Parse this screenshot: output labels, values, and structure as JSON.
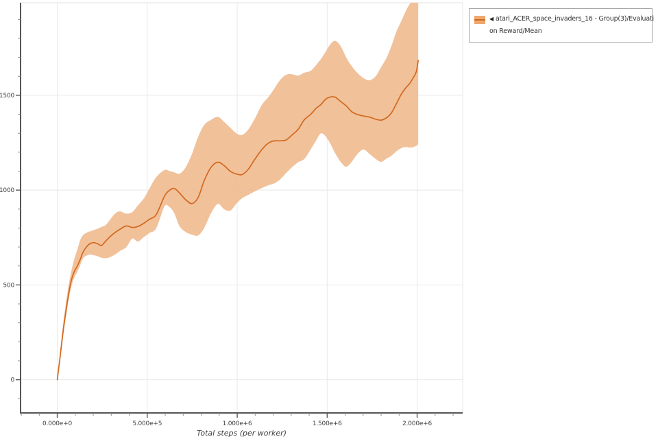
{
  "colors": {
    "line": "#d2691e",
    "band": "#f0bc92",
    "swatch_band": "#efa96e",
    "grid": "#e8e8e8",
    "spine": "#555555",
    "minor_tick": "#8a8a8a",
    "tick_label": "#3d3d3d",
    "axis_title": "#3d3d3d",
    "legend_border": "#a6a6a6",
    "legend_text": "#333333"
  },
  "chart_data": {
    "type": "line",
    "title": "",
    "xlabel": "Total steps (per worker)",
    "ylabel": "",
    "grid": true,
    "legend_position": "top-right",
    "xlim": [
      -204000,
      2253000
    ],
    "ylim": [
      -175,
      1988
    ],
    "x_ticks": [
      {
        "value": 0,
        "label": "0.000e+0"
      },
      {
        "value": 500000,
        "label": "5.000e+5"
      },
      {
        "value": 1000000,
        "label": "1.000e+6"
      },
      {
        "value": 1500000,
        "label": "1.500e+6"
      },
      {
        "value": 2000000,
        "label": "2.000e+6"
      }
    ],
    "y_ticks": [
      {
        "value": 0,
        "label": "0"
      },
      {
        "value": 500,
        "label": "500"
      },
      {
        "value": 1000,
        "label": "1000"
      },
      {
        "value": 1500,
        "label": "1500"
      }
    ],
    "x_minor_interval": 100000,
    "y_minor_interval": 100,
    "legend_item": {
      "marker": "◀",
      "label": "atari_ACER_space_invaders_16 - Group(3)/Evaluation Reward/Mean",
      "label_lines": [
        "atari_ACER_space_invaders_16 - Group(3)/Evaluati",
        "on Reward/Mean"
      ]
    },
    "series": [
      {
        "name": "atari_ACER_space_invaders_16 - Group(3)/Evaluation Reward/Mean",
        "points_format": [
          "step",
          "mean",
          "low",
          "high"
        ],
        "points": [
          [
            0,
            0,
            0,
            4
          ],
          [
            17000,
            130,
            112,
            158
          ],
          [
            32000,
            252,
            226,
            290
          ],
          [
            48000,
            362,
            330,
            405
          ],
          [
            63000,
            452,
            420,
            498
          ],
          [
            78000,
            523,
            490,
            572
          ],
          [
            93000,
            568,
            535,
            632
          ],
          [
            112000,
            601,
            570,
            688
          ],
          [
            128000,
            636,
            606,
            738
          ],
          [
            143000,
            672,
            640,
            762
          ],
          [
            162000,
            700,
            654,
            775
          ],
          [
            181000,
            717,
            660,
            782
          ],
          [
            204000,
            723,
            657,
            790
          ],
          [
            227000,
            716,
            650,
            797
          ],
          [
            246000,
            708,
            643,
            806
          ],
          [
            269000,
            731,
            641,
            816
          ],
          [
            295000,
            756,
            647,
            846
          ],
          [
            322000,
            777,
            661,
            877
          ],
          [
            349000,
            794,
            679,
            888
          ],
          [
            383000,
            811,
            699,
            876
          ],
          [
            417000,
            803,
            744,
            884
          ],
          [
            448000,
            808,
            729,
            919
          ],
          [
            482000,
            826,
            753,
            957
          ],
          [
            512000,
            846,
            774,
            1008
          ],
          [
            550000,
            871,
            799,
            1068
          ],
          [
            596000,
            968,
            914,
            1106
          ],
          [
            623000,
            998,
            911,
            1101
          ],
          [
            650000,
            1009,
            878,
            1094
          ],
          [
            680000,
            984,
            809,
            1087
          ],
          [
            714000,
            949,
            779,
            1121
          ],
          [
            749000,
            929,
            765,
            1192
          ],
          [
            783000,
            961,
            761,
            1281
          ],
          [
            817000,
            1051,
            801,
            1344
          ],
          [
            855000,
            1121,
            879,
            1371
          ],
          [
            893000,
            1147,
            927,
            1386
          ],
          [
            928000,
            1129,
            899,
            1359
          ],
          [
            962000,
            1099,
            892,
            1329
          ],
          [
            996000,
            1085,
            929,
            1299
          ],
          [
            1027000,
            1082,
            957,
            1291
          ],
          [
            1061000,
            1109,
            974,
            1319
          ],
          [
            1099000,
            1164,
            994,
            1379
          ],
          [
            1137000,
            1214,
            1011,
            1449
          ],
          [
            1172000,
            1247,
            1025,
            1489
          ],
          [
            1202000,
            1259,
            1034,
            1529
          ],
          [
            1236000,
            1260,
            1054,
            1578
          ],
          [
            1271000,
            1264,
            1089,
            1608
          ],
          [
            1305000,
            1291,
            1121,
            1611
          ],
          [
            1339000,
            1321,
            1147,
            1604
          ],
          [
            1373000,
            1371,
            1164,
            1619
          ],
          [
            1408000,
            1399,
            1214,
            1629
          ],
          [
            1438000,
            1431,
            1261,
            1659
          ],
          [
            1465000,
            1451,
            1299,
            1691
          ],
          [
            1491000,
            1479,
            1284,
            1729
          ],
          [
            1518000,
            1491,
            1244,
            1769
          ],
          [
            1545000,
            1490,
            1194,
            1787
          ],
          [
            1575000,
            1467,
            1149,
            1759
          ],
          [
            1606000,
            1444,
            1123,
            1699
          ],
          [
            1636000,
            1414,
            1149,
            1654
          ],
          [
            1667000,
            1399,
            1189,
            1619
          ],
          [
            1701000,
            1391,
            1214,
            1591
          ],
          [
            1735000,
            1385,
            1191,
            1579
          ],
          [
            1770000,
            1374,
            1164,
            1601
          ],
          [
            1800000,
            1369,
            1149,
            1649
          ],
          [
            1831000,
            1382,
            1167,
            1699
          ],
          [
            1857000,
            1407,
            1181,
            1759
          ],
          [
            1884000,
            1454,
            1204,
            1834
          ],
          [
            1911000,
            1504,
            1221,
            1889
          ],
          [
            1937000,
            1539,
            1227,
            1944
          ],
          [
            1960000,
            1564,
            1224,
            1984
          ],
          [
            1979000,
            1594,
            1227,
            2008
          ],
          [
            1995000,
            1624,
            1234,
            2018
          ],
          [
            2006000,
            1684,
            1241,
            2020
          ]
        ]
      }
    ]
  }
}
